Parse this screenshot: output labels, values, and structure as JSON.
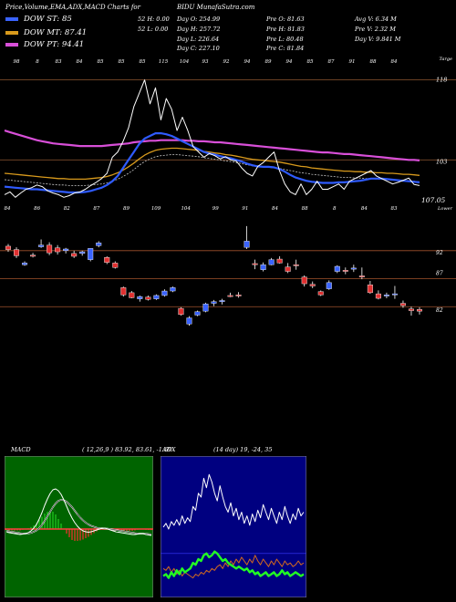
{
  "header": {
    "left_title": "Price,Volume,EMA,ADX,MACD Charts for",
    "symbol_title": "BIDU MunafaSutra.com"
  },
  "legend": [
    {
      "label": "DOW ST: 85",
      "color": "#3a63ff"
    },
    {
      "label": "DOW MT: 87.41",
      "color": "#d89a1c"
    },
    {
      "label": "DOW PT: 94.41",
      "color": "#d84fd8"
    }
  ],
  "stats": {
    "col1": [
      "Day O: 254.99",
      "Day H: 257.72",
      "Day L: 226.64",
      "Day C: 227.10"
    ],
    "col0": [
      "",
      "52 H: 0.00",
      "52 L: 0.00",
      ""
    ],
    "col2": [
      "Pre O: 81.63",
      "Pre H: 81.83",
      "Pre L: 80.48",
      "Pre C: 81.84"
    ],
    "col3": [
      "Avg V: 6.34 M",
      "Pre V: 2.32 M",
      "Day V: 9.841 M",
      ""
    ]
  },
  "colors": {
    "background": "#000000",
    "ema_short": "#2f5bff",
    "ema_mid": "#d89a1c",
    "ema_long": "#d84fd8",
    "candle_up": "#3a63ff",
    "candle_down": "#e03030",
    "level_line": "#a0522d",
    "macd_bg": "#006400",
    "adx_bg": "#000080"
  },
  "chart_data": [
    {
      "type": "line",
      "name": "price-ema-panel",
      "top_labels": [
        "98",
        "8",
        "83",
        "84",
        "85",
        "85",
        "85",
        "115",
        "104",
        "93",
        "92",
        "94",
        "89",
        "94",
        "85",
        "87",
        "91",
        "88",
        "84"
      ],
      "bottom_labels": [
        "84",
        "86",
        "82",
        "87",
        "89",
        "109",
        "104",
        "99",
        "91",
        "84",
        "88",
        "8",
        "84",
        "83"
      ],
      "right_labels": [
        "118",
        "103",
        "107.05"
      ],
      "tag_top": "Targe",
      "tag_bottom": "Lower",
      "price": [
        96.5,
        97.0,
        96.0,
        96.8,
        97.5,
        97.8,
        98.3,
        98.0,
        97.2,
        96.8,
        96.5,
        96.0,
        96.3,
        96.8,
        97.0,
        97.5,
        98.2,
        98.8,
        99.5,
        100.5,
        103.5,
        104.5,
        106.5,
        109,
        113,
        115.5,
        118,
        113.5,
        116.5,
        110.5,
        114.5,
        112.5,
        108.5,
        111,
        108.5,
        105.5,
        104.5,
        103.5,
        104.2,
        103.8,
        103.2,
        103.6,
        103.0,
        102.8,
        101.5,
        100.5,
        100.0,
        101.8,
        102.5,
        103.5,
        104.5,
        101.0,
        98.5,
        97.0,
        96.5,
        98.5,
        96.5,
        97.5,
        99.0,
        97.5,
        97.5,
        98.0,
        98.5,
        97.5,
        99.0,
        99.5,
        100.0,
        100.5,
        101.0,
        100.0,
        99.5,
        99.0,
        98.5,
        98.8,
        99.2,
        99.6,
        98.4,
        98.2
      ],
      "ema_short": [
        98.0,
        97.9,
        97.8,
        97.7,
        97.6,
        97.5,
        97.5,
        97.4,
        97.3,
        97.2,
        97.1,
        97.0,
        96.9,
        96.9,
        96.9,
        97.0,
        97.2,
        97.5,
        97.8,
        98.3,
        99.0,
        100.0,
        101.5,
        103.0,
        104.5,
        106.0,
        107.0,
        107.5,
        108.0,
        108.0,
        107.8,
        107.5,
        107.0,
        106.5,
        106.0,
        105.5,
        105.0,
        104.5,
        104.2,
        104.0,
        103.7,
        103.5,
        103.3,
        103.0,
        102.7,
        102.3,
        102.0,
        101.8,
        101.7,
        101.7,
        101.6,
        101.3,
        100.8,
        100.2,
        99.7,
        99.4,
        99.1,
        98.9,
        98.8,
        98.7,
        98.7,
        98.7,
        98.8,
        98.8,
        98.9,
        99.0,
        99.1,
        99.3,
        99.5,
        99.5,
        99.5,
        99.4,
        99.3,
        99.2,
        99.1,
        99.0,
        98.9,
        98.8
      ],
      "ema_mid": [
        100.5,
        100.4,
        100.3,
        100.2,
        100.1,
        100.0,
        99.9,
        99.8,
        99.7,
        99.6,
        99.5,
        99.5,
        99.4,
        99.4,
        99.4,
        99.4,
        99.5,
        99.6,
        99.7,
        99.9,
        100.2,
        100.6,
        101.1,
        101.7,
        102.4,
        103.2,
        103.9,
        104.4,
        104.8,
        105.0,
        105.1,
        105.2,
        105.2,
        105.1,
        105.0,
        104.9,
        104.8,
        104.6,
        104.5,
        104.3,
        104.2,
        104.0,
        103.9,
        103.7,
        103.5,
        103.3,
        103.1,
        103.0,
        102.9,
        102.8,
        102.7,
        102.6,
        102.4,
        102.2,
        102.0,
        101.8,
        101.7,
        101.5,
        101.4,
        101.3,
        101.2,
        101.1,
        101.0,
        100.9,
        100.9,
        100.8,
        100.8,
        100.7,
        100.7,
        100.6,
        100.6,
        100.5,
        100.5,
        100.4,
        100.3,
        100.3,
        100.2,
        100.1
      ],
      "ema_long": [
        108.5,
        108.2,
        107.9,
        107.6,
        107.3,
        107.0,
        106.7,
        106.5,
        106.3,
        106.1,
        106.0,
        105.9,
        105.8,
        105.7,
        105.6,
        105.6,
        105.6,
        105.6,
        105.6,
        105.7,
        105.8,
        105.9,
        106.0,
        106.1,
        106.3,
        106.4,
        106.5,
        106.6,
        106.6,
        106.7,
        106.7,
        106.7,
        106.7,
        106.7,
        106.6,
        106.6,
        106.5,
        106.5,
        106.4,
        106.3,
        106.3,
        106.2,
        106.1,
        106.0,
        105.9,
        105.8,
        105.7,
        105.6,
        105.5,
        105.4,
        105.3,
        105.2,
        105.1,
        105.0,
        104.9,
        104.8,
        104.7,
        104.6,
        104.5,
        104.4,
        104.4,
        104.3,
        104.2,
        104.1,
        104.1,
        104.0,
        103.9,
        103.8,
        103.7,
        103.6,
        103.5,
        103.4,
        103.3,
        103.2,
        103.1,
        103.0,
        103.0,
        102.9
      ]
    },
    {
      "type": "candlestick",
      "name": "candles-panel",
      "right_labels": [
        "92",
        "87",
        "82"
      ],
      "levels": [
        92,
        87,
        82
      ],
      "candles": [
        {
          "o": 92.8,
          "h": 93.2,
          "l": 91.8,
          "c": 92.2
        },
        {
          "o": 92.2,
          "h": 92.6,
          "l": 90.7,
          "c": 91.1
        },
        {
          "o": 89.5,
          "h": 90.1,
          "l": 89.3,
          "c": 89.8
        },
        {
          "o": 91.2,
          "h": 91.6,
          "l": 90.8,
          "c": 91.0
        },
        {
          "o": 92.7,
          "h": 94.0,
          "l": 92.5,
          "c": 93.0
        },
        {
          "o": 93.0,
          "h": 93.5,
          "l": 91.2,
          "c": 91.6
        },
        {
          "o": 92.5,
          "h": 93.0,
          "l": 91.3,
          "c": 91.8
        },
        {
          "o": 92.0,
          "h": 92.5,
          "l": 91.5,
          "c": 92.3
        },
        {
          "o": 91.5,
          "h": 92.0,
          "l": 90.7,
          "c": 91.0
        },
        {
          "o": 91.5,
          "h": 92.0,
          "l": 91.1,
          "c": 91.8
        },
        {
          "o": 90.4,
          "h": 92.4,
          "l": 90.1,
          "c": 92.4
        },
        {
          "o": 92.9,
          "h": 93.7,
          "l": 92.6,
          "c": 93.4
        },
        {
          "o": 90.8,
          "h": 91.0,
          "l": 89.6,
          "c": 89.9
        },
        {
          "o": 89.8,
          "h": 90.1,
          "l": 88.8,
          "c": 89.0
        },
        {
          "o": 85.4,
          "h": 85.6,
          "l": 83.8,
          "c": 84.1
        },
        {
          "o": 84.5,
          "h": 84.8,
          "l": 83.5,
          "c": 83.6
        },
        {
          "o": 83.4,
          "h": 84.0,
          "l": 82.9,
          "c": 83.8
        },
        {
          "o": 83.7,
          "h": 84.0,
          "l": 83.1,
          "c": 83.3
        },
        {
          "o": 83.4,
          "h": 84.2,
          "l": 83.2,
          "c": 84.0
        },
        {
          "o": 84.0,
          "h": 85.1,
          "l": 83.8,
          "c": 84.8
        },
        {
          "o": 84.8,
          "h": 85.6,
          "l": 84.6,
          "c": 85.4
        },
        {
          "o": 81.7,
          "h": 81.9,
          "l": 80.4,
          "c": 80.6
        },
        {
          "o": 78.9,
          "h": 80.3,
          "l": 78.6,
          "c": 80.0
        },
        {
          "o": 80.5,
          "h": 81.3,
          "l": 80.3,
          "c": 81.1
        },
        {
          "o": 81.2,
          "h": 82.7,
          "l": 81.0,
          "c": 82.5
        },
        {
          "o": 82.6,
          "h": 83.2,
          "l": 82.1,
          "c": 82.9
        },
        {
          "o": 82.9,
          "h": 83.4,
          "l": 82.4,
          "c": 83.1
        },
        {
          "o": 84.0,
          "h": 84.5,
          "l": 83.7,
          "c": 83.9
        },
        {
          "o": 84.1,
          "h": 84.6,
          "l": 83.6,
          "c": 84.0
        },
        {
          "o": 92.6,
          "h": 96.4,
          "l": 92.3,
          "c": 93.7
        },
        {
          "o": 89.7,
          "h": 90.4,
          "l": 88.7,
          "c": 89.5
        },
        {
          "o": 88.6,
          "h": 89.9,
          "l": 88.3,
          "c": 89.5
        },
        {
          "o": 89.5,
          "h": 90.7,
          "l": 89.4,
          "c": 90.4
        },
        {
          "o": 90.5,
          "h": 91.0,
          "l": 89.7,
          "c": 89.8
        },
        {
          "o": 89.1,
          "h": 89.8,
          "l": 88.0,
          "c": 88.3
        },
        {
          "o": 89.5,
          "h": 90.4,
          "l": 88.6,
          "c": 89.3
        },
        {
          "o": 87.3,
          "h": 87.6,
          "l": 85.6,
          "c": 86.1
        },
        {
          "o": 86.0,
          "h": 86.5,
          "l": 85.3,
          "c": 85.7
        },
        {
          "o": 84.7,
          "h": 84.9,
          "l": 83.9,
          "c": 84.1
        },
        {
          "o": 85.2,
          "h": 86.7,
          "l": 85.0,
          "c": 86.3
        },
        {
          "o": 88.3,
          "h": 89.4,
          "l": 88.0,
          "c": 89.2
        },
        {
          "o": 88.5,
          "h": 89.0,
          "l": 87.8,
          "c": 88.3
        },
        {
          "o": 88.7,
          "h": 89.5,
          "l": 88.2,
          "c": 88.9
        },
        {
          "o": 87.5,
          "h": 89.0,
          "l": 86.9,
          "c": 87.3
        },
        {
          "o": 85.9,
          "h": 86.6,
          "l": 84.3,
          "c": 84.5
        },
        {
          "o": 84.3,
          "h": 84.9,
          "l": 83.3,
          "c": 83.5
        },
        {
          "o": 84.0,
          "h": 84.5,
          "l": 83.5,
          "c": 84.1
        },
        {
          "o": 84.3,
          "h": 85.7,
          "l": 83.4,
          "c": 84.3
        },
        {
          "o": 82.6,
          "h": 83.1,
          "l": 81.8,
          "c": 82.2
        },
        {
          "o": 81.6,
          "h": 82.0,
          "l": 80.4,
          "c": 81.3
        },
        {
          "o": 81.5,
          "h": 81.9,
          "l": 80.6,
          "c": 81.2
        }
      ]
    },
    {
      "type": "line",
      "name": "macd-panel",
      "title": "MACD",
      "params": "( 12,26,9 ) 83.92, 83.61, -1.69",
      "macd": [
        -0.3,
        -0.4,
        -0.45,
        -0.5,
        -0.55,
        -0.6,
        -0.55,
        -0.5,
        -0.4,
        -0.2,
        0.1,
        0.5,
        1.1,
        1.8,
        2.6,
        3.3,
        3.9,
        4.3,
        4.4,
        4.2,
        3.8,
        3.2,
        2.5,
        1.8,
        1.2,
        0.7,
        0.3,
        0.0,
        -0.2,
        -0.3,
        -0.35,
        -0.3,
        -0.2,
        -0.1,
        0.0,
        0.1,
        0.1,
        0.0,
        -0.1,
        -0.2,
        -0.3,
        -0.35,
        -0.4,
        -0.45,
        -0.5,
        -0.55,
        -0.6,
        -0.6,
        -0.55,
        -0.5,
        -0.5,
        -0.6,
        -0.65,
        -0.7
      ],
      "signal": [
        -0.2,
        -0.25,
        -0.3,
        -0.35,
        -0.4,
        -0.45,
        -0.48,
        -0.5,
        -0.48,
        -0.42,
        -0.3,
        -0.15,
        0.1,
        0.45,
        0.9,
        1.4,
        1.9,
        2.4,
        2.8,
        3.1,
        3.2,
        3.15,
        3.0,
        2.7,
        2.4,
        2.0,
        1.6,
        1.25,
        0.95,
        0.7,
        0.5,
        0.35,
        0.25,
        0.15,
        0.1,
        0.08,
        0.06,
        0.04,
        0.0,
        -0.05,
        -0.1,
        -0.15,
        -0.2,
        -0.25,
        -0.3,
        -0.35,
        -0.4,
        -0.45,
        -0.48,
        -0.5,
        -0.5,
        -0.52,
        -0.55,
        -0.58
      ]
    },
    {
      "type": "line",
      "name": "adx-panel",
      "title": "ADX",
      "params": "(14 day) 19, -24, 35",
      "adx": [
        34,
        36,
        33,
        37,
        35,
        38,
        35,
        40,
        36,
        39,
        37,
        45,
        43,
        52,
        50,
        60,
        55,
        62,
        58,
        52,
        48,
        56,
        50,
        45,
        42,
        47,
        40,
        44,
        38,
        42,
        36,
        40,
        35,
        41,
        37,
        43,
        39,
        46,
        42,
        38,
        44,
        40,
        36,
        42,
        38,
        45,
        40,
        36,
        41,
        38,
        44,
        40,
        42
      ],
      "plus_di": [
        8,
        9,
        7,
        10,
        8,
        11,
        9,
        12,
        10,
        11,
        12,
        15,
        14,
        17,
        16,
        19,
        20,
        18,
        19,
        21,
        20,
        18,
        16,
        17,
        15,
        14,
        13,
        12,
        13,
        12,
        11,
        12,
        10,
        11,
        9,
        10,
        8,
        9,
        10,
        8,
        9,
        10,
        8,
        9,
        11,
        9,
        10,
        8,
        9,
        10,
        9,
        8,
        9
      ],
      "minus_di": [
        12,
        11,
        13,
        10,
        12,
        9,
        11,
        8,
        10,
        9,
        8,
        7,
        9,
        8,
        10,
        9,
        11,
        10,
        12,
        11,
        13,
        14,
        12,
        15,
        13,
        16,
        14,
        17,
        15,
        18,
        16,
        14,
        17,
        15,
        19,
        16,
        14,
        17,
        15,
        13,
        16,
        14,
        17,
        15,
        13,
        16,
        14,
        15,
        13,
        14,
        16,
        14,
        15
      ]
    }
  ]
}
